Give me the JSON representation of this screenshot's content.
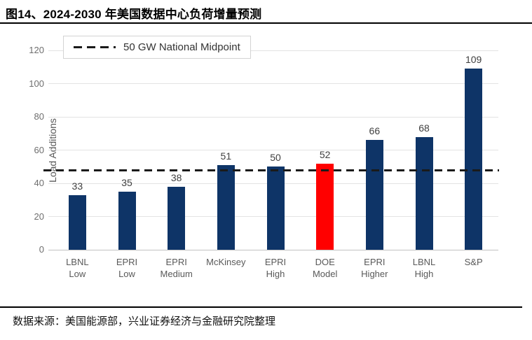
{
  "header": {
    "title": "图14、2024-2030 年美国数据中心负荷增量预测"
  },
  "footer": {
    "source": "数据来源：美国能源部，兴业证券经济与金融研究院整理"
  },
  "chart_data": {
    "type": "bar",
    "title": "",
    "xlabel": "",
    "ylabel": "Load Additions",
    "ylim": [
      0,
      120
    ],
    "yticks": [
      0,
      20,
      40,
      60,
      80,
      100,
      120
    ],
    "grid": true,
    "legend_position": "top-left",
    "categories": [
      [
        "LBNL",
        "Low"
      ],
      [
        "EPRI",
        "Low"
      ],
      [
        "EPRI",
        "Medium"
      ],
      [
        "McKinsey"
      ],
      [
        "EPRI",
        "High"
      ],
      [
        "DOE",
        "Model"
      ],
      [
        "EPRI",
        "Higher"
      ],
      [
        "LBNL",
        "High"
      ],
      [
        "S&P"
      ]
    ],
    "values": [
      33,
      35,
      38,
      51,
      50,
      52,
      66,
      68,
      109
    ],
    "bar_colors": [
      "navy",
      "navy",
      "navy",
      "navy",
      "navy",
      "red",
      "navy",
      "navy",
      "navy"
    ],
    "highlight_index": 5,
    "colors": {
      "navy": "#0e3467",
      "red": "#ff0000",
      "gridline": "#e3e3e3",
      "dashed_line": "#1a1a1a"
    },
    "reference_line": {
      "label": "50 GW National Midpoint",
      "value": 50,
      "draw_at": 48,
      "style": "dashed"
    }
  }
}
